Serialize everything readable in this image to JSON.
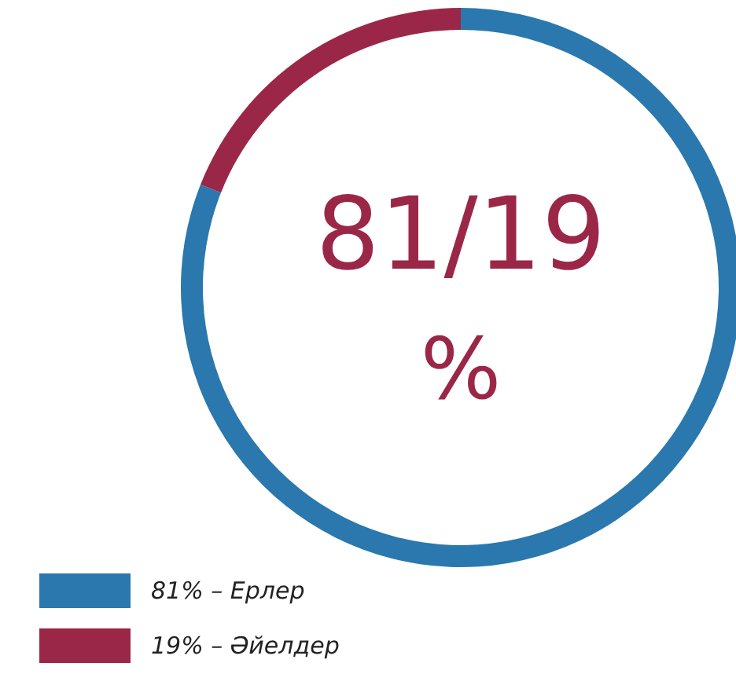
{
  "chart_data": {
    "type": "donut",
    "categories": [
      "81% – Ерлер",
      "19% – Әйелдер"
    ],
    "values": [
      81,
      19
    ],
    "colors": [
      "#2a78ad",
      "#9b2748"
    ],
    "annotations": [
      "81/19",
      "%"
    ],
    "legend": "bottom left"
  }
}
